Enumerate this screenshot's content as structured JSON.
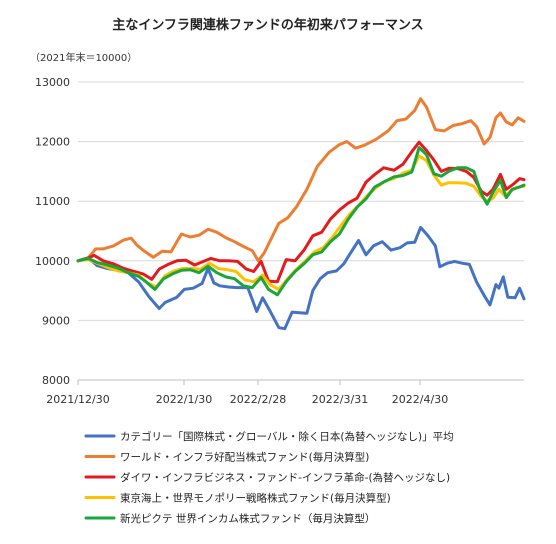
{
  "chart_data": {
    "type": "line",
    "title": "主なインフラ関連株ファンドの年初来パフォーマンス",
    "subtitle": "（2021年末＝10000）",
    "xlabel": "",
    "ylabel": "",
    "ylim": [
      8000,
      13000
    ],
    "y_ticks": [
      "8000",
      "9000",
      "10000",
      "11000",
      "12000",
      "13000"
    ],
    "x_tick_labels": [
      "2021/12/30",
      "2022/1/30",
      "2022/2/28",
      "2022/3/31",
      "2022/4/30"
    ],
    "grid": "horizontal",
    "legend_position": "bottom",
    "series": [
      {
        "name": "カテゴリー「国際株式・グローバル・除く日本(為替ヘッジなし)」平均",
        "color": "#4472c4",
        "values": [
          [
            0,
            10000
          ],
          [
            7,
            10050
          ],
          [
            13,
            9920
          ],
          [
            20,
            9870
          ],
          [
            27,
            9840
          ],
          [
            34,
            9800
          ],
          [
            41,
            9650
          ],
          [
            48,
            9400
          ],
          [
            55,
            9200
          ],
          [
            59,
            9300
          ],
          [
            67,
            9390
          ],
          [
            72,
            9520
          ],
          [
            78,
            9540
          ],
          [
            84,
            9620
          ],
          [
            88,
            9870
          ],
          [
            92,
            9630
          ],
          [
            96,
            9580
          ],
          [
            102,
            9560
          ],
          [
            108,
            9550
          ],
          [
            115,
            9550
          ],
          [
            121,
            9150
          ],
          [
            125,
            9380
          ],
          [
            130,
            9160
          ],
          [
            136,
            8880
          ],
          [
            140,
            8860
          ],
          [
            145,
            9140
          ],
          [
            150,
            9130
          ],
          [
            155,
            9120
          ],
          [
            159,
            9500
          ],
          [
            164,
            9700
          ],
          [
            169,
            9800
          ],
          [
            175,
            9830
          ],
          [
            180,
            9950
          ],
          [
            185,
            10150
          ],
          [
            190,
            10340
          ],
          [
            195,
            10100
          ],
          [
            200,
            10250
          ],
          [
            206,
            10320
          ],
          [
            212,
            10180
          ],
          [
            218,
            10220
          ],
          [
            223,
            10300
          ],
          [
            228,
            10310
          ],
          [
            232,
            10560
          ],
          [
            237,
            10420
          ],
          [
            242,
            10250
          ],
          [
            245,
            9900
          ],
          [
            250,
            9960
          ],
          [
            255,
            9990
          ],
          [
            260,
            9960
          ],
          [
            265,
            9940
          ],
          [
            270,
            9640
          ],
          [
            275,
            9420
          ],
          [
            279,
            9260
          ],
          [
            283,
            9600
          ],
          [
            285,
            9540
          ],
          [
            288,
            9730
          ],
          [
            291,
            9390
          ],
          [
            296,
            9380
          ],
          [
            299,
            9540
          ],
          [
            302,
            9360
          ]
        ]
      },
      {
        "name": "ワールド・インフラ好配当株式ファンド(毎月決算型)",
        "color": "#ed7d31",
        "values": [
          [
            0,
            10000
          ],
          [
            7,
            10050
          ],
          [
            12,
            10200
          ],
          [
            17,
            10200
          ],
          [
            24,
            10250
          ],
          [
            31,
            10350
          ],
          [
            36,
            10380
          ],
          [
            40,
            10260
          ],
          [
            45,
            10160
          ],
          [
            51,
            10060
          ],
          [
            57,
            10160
          ],
          [
            63,
            10150
          ],
          [
            70,
            10450
          ],
          [
            76,
            10400
          ],
          [
            82,
            10430
          ],
          [
            88,
            10530
          ],
          [
            94,
            10480
          ],
          [
            100,
            10390
          ],
          [
            106,
            10320
          ],
          [
            112,
            10240
          ],
          [
            118,
            10170
          ],
          [
            122,
            10000
          ],
          [
            126,
            10130
          ],
          [
            130,
            10330
          ],
          [
            136,
            10630
          ],
          [
            142,
            10720
          ],
          [
            148,
            10910
          ],
          [
            155,
            11200
          ],
          [
            162,
            11580
          ],
          [
            170,
            11820
          ],
          [
            177,
            11950
          ],
          [
            182,
            12000
          ],
          [
            188,
            11890
          ],
          [
            194,
            11940
          ],
          [
            202,
            12040
          ],
          [
            210,
            12180
          ],
          [
            216,
            12350
          ],
          [
            222,
            12380
          ],
          [
            228,
            12520
          ],
          [
            232,
            12720
          ],
          [
            236,
            12580
          ],
          [
            242,
            12200
          ],
          [
            248,
            12180
          ],
          [
            254,
            12270
          ],
          [
            260,
            12300
          ],
          [
            266,
            12350
          ],
          [
            270,
            12250
          ],
          [
            275,
            11960
          ],
          [
            279,
            12070
          ],
          [
            283,
            12400
          ],
          [
            286,
            12480
          ],
          [
            290,
            12330
          ],
          [
            294,
            12280
          ],
          [
            298,
            12400
          ],
          [
            302,
            12340
          ]
        ]
      },
      {
        "name": "ダイワ・インフラビジネス・ファンド-インフラ革命-(為替ヘッジなし)",
        "color": "#e41a1c",
        "values": [
          [
            0,
            10000
          ],
          [
            6,
            10040
          ],
          [
            11,
            10090
          ],
          [
            17,
            10000
          ],
          [
            24,
            9950
          ],
          [
            31,
            9870
          ],
          [
            38,
            9820
          ],
          [
            44,
            9780
          ],
          [
            50,
            9690
          ],
          [
            55,
            9860
          ],
          [
            61,
            9940
          ],
          [
            67,
            10000
          ],
          [
            73,
            10010
          ],
          [
            79,
            9930
          ],
          [
            85,
            9990
          ],
          [
            90,
            10040
          ],
          [
            96,
            10000
          ],
          [
            102,
            10000
          ],
          [
            108,
            9990
          ],
          [
            114,
            9860
          ],
          [
            119,
            9820
          ],
          [
            124,
            9990
          ],
          [
            129,
            9660
          ],
          [
            135,
            9650
          ],
          [
            141,
            10020
          ],
          [
            147,
            10000
          ],
          [
            153,
            10180
          ],
          [
            159,
            10420
          ],
          [
            165,
            10480
          ],
          [
            171,
            10700
          ],
          [
            177,
            10850
          ],
          [
            183,
            10970
          ],
          [
            189,
            11050
          ],
          [
            195,
            11320
          ],
          [
            201,
            11450
          ],
          [
            207,
            11560
          ],
          [
            214,
            11520
          ],
          [
            220,
            11620
          ],
          [
            226,
            11830
          ],
          [
            231,
            11990
          ],
          [
            236,
            11850
          ],
          [
            241,
            11690
          ],
          [
            246,
            11500
          ],
          [
            251,
            11550
          ],
          [
            257,
            11550
          ],
          [
            263,
            11500
          ],
          [
            268,
            11400
          ],
          [
            273,
            11170
          ],
          [
            277,
            11100
          ],
          [
            281,
            11200
          ],
          [
            286,
            11450
          ],
          [
            290,
            11200
          ],
          [
            295,
            11290
          ],
          [
            299,
            11380
          ],
          [
            302,
            11360
          ]
        ]
      },
      {
        "name": "東京海上・世界モノポリー戦略株式ファンド(毎月決算型)",
        "color": "#ffc000",
        "values": [
          [
            0,
            10000
          ],
          [
            7,
            10020
          ],
          [
            13,
            9960
          ],
          [
            20,
            9890
          ],
          [
            27,
            9830
          ],
          [
            34,
            9800
          ],
          [
            41,
            9760
          ],
          [
            47,
            9630
          ],
          [
            53,
            9560
          ],
          [
            59,
            9750
          ],
          [
            65,
            9830
          ],
          [
            71,
            9870
          ],
          [
            77,
            9870
          ],
          [
            83,
            9860
          ],
          [
            89,
            9960
          ],
          [
            95,
            9870
          ],
          [
            101,
            9850
          ],
          [
            107,
            9820
          ],
          [
            113,
            9680
          ],
          [
            119,
            9650
          ],
          [
            125,
            9760
          ],
          [
            130,
            9600
          ],
          [
            136,
            9520
          ],
          [
            142,
            9700
          ],
          [
            148,
            9860
          ],
          [
            154,
            10000
          ],
          [
            160,
            10150
          ],
          [
            166,
            10220
          ],
          [
            172,
            10390
          ],
          [
            178,
            10590
          ],
          [
            184,
            10780
          ],
          [
            190,
            10930
          ],
          [
            196,
            11100
          ],
          [
            202,
            11230
          ],
          [
            208,
            11340
          ],
          [
            214,
            11380
          ],
          [
            220,
            11470
          ],
          [
            226,
            11520
          ],
          [
            231,
            11760
          ],
          [
            236,
            11680
          ],
          [
            241,
            11440
          ],
          [
            246,
            11270
          ],
          [
            251,
            11310
          ],
          [
            257,
            11310
          ],
          [
            263,
            11300
          ],
          [
            268,
            11250
          ],
          [
            273,
            11080
          ],
          [
            277,
            11000
          ],
          [
            281,
            11050
          ],
          [
            285,
            11200
          ],
          [
            289,
            11090
          ],
          [
            293,
            11170
          ],
          [
            297,
            11230
          ],
          [
            302,
            11250
          ]
        ]
      },
      {
        "name": "新光ピクテ 世界インカム株式ファンド（毎月決算型）",
        "color": "#1aa63a",
        "values": [
          [
            0,
            10000
          ],
          [
            7,
            10040
          ],
          [
            13,
            9970
          ],
          [
            20,
            9930
          ],
          [
            27,
            9880
          ],
          [
            34,
            9800
          ],
          [
            41,
            9740
          ],
          [
            46,
            9650
          ],
          [
            52,
            9520
          ],
          [
            58,
            9700
          ],
          [
            64,
            9780
          ],
          [
            70,
            9840
          ],
          [
            76,
            9850
          ],
          [
            82,
            9800
          ],
          [
            88,
            9910
          ],
          [
            94,
            9800
          ],
          [
            100,
            9730
          ],
          [
            106,
            9700
          ],
          [
            112,
            9580
          ],
          [
            118,
            9550
          ],
          [
            124,
            9720
          ],
          [
            129,
            9520
          ],
          [
            135,
            9430
          ],
          [
            141,
            9650
          ],
          [
            147,
            9820
          ],
          [
            153,
            9950
          ],
          [
            159,
            10100
          ],
          [
            165,
            10150
          ],
          [
            171,
            10320
          ],
          [
            177,
            10450
          ],
          [
            183,
            10700
          ],
          [
            189,
            10900
          ],
          [
            195,
            11040
          ],
          [
            201,
            11240
          ],
          [
            207,
            11320
          ],
          [
            214,
            11410
          ],
          [
            220,
            11430
          ],
          [
            226,
            11490
          ],
          [
            231,
            11900
          ],
          [
            236,
            11780
          ],
          [
            241,
            11460
          ],
          [
            246,
            11420
          ],
          [
            251,
            11500
          ],
          [
            257,
            11560
          ],
          [
            263,
            11560
          ],
          [
            268,
            11500
          ],
          [
            273,
            11130
          ],
          [
            277,
            10950
          ],
          [
            281,
            11150
          ],
          [
            286,
            11350
          ],
          [
            290,
            11060
          ],
          [
            294,
            11200
          ],
          [
            298,
            11230
          ],
          [
            302,
            11270
          ]
        ]
      }
    ]
  }
}
